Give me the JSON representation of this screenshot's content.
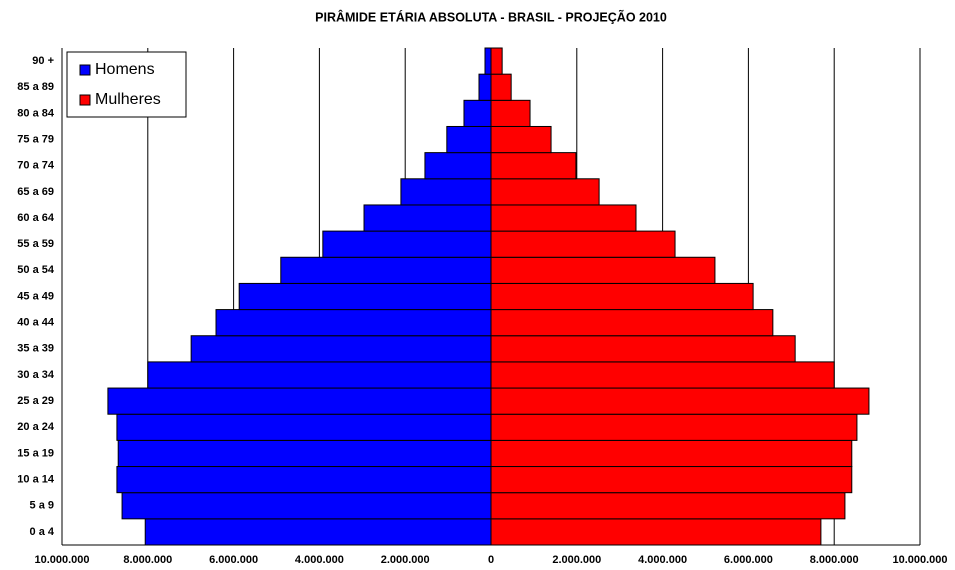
{
  "chart_data": {
    "type": "pyramid",
    "title": "PIRÂMIDE ETÁRIA ABSOLUTA - BRASIL - PROJEÇÃO 2010",
    "categories": [
      "0 a 4",
      "5 a 9",
      "10 a 14",
      "15 a 19",
      "20 a 24",
      "25 a 29",
      "30 a 34",
      "35 a 39",
      "40 a 44",
      "45 a 49",
      "50 a 54",
      "55 a 59",
      "60 a 64",
      "65 a 69",
      "70 a 74",
      "75 a 79",
      "80 a 84",
      "85 a 89",
      "90 +"
    ],
    "series": [
      {
        "name": "Homens",
        "color": "#0000ff",
        "values": [
          -8060000,
          -8600000,
          -8720000,
          -8690000,
          -8720000,
          -8930000,
          -8000000,
          -6990000,
          -6410000,
          -5870000,
          -4900000,
          -3920000,
          -2960000,
          -2100000,
          -1540000,
          -1030000,
          -630000,
          -280000,
          -140000
        ]
      },
      {
        "name": "Mulheres",
        "color": "#ff0000",
        "values": [
          7690000,
          8250000,
          8410000,
          8410000,
          8530000,
          8810000,
          8000000,
          7090000,
          6570000,
          6110000,
          5220000,
          4290000,
          3380000,
          2520000,
          1980000,
          1400000,
          910000,
          470000,
          260000
        ]
      }
    ],
    "xlim": [
      -10000000,
      10000000
    ],
    "xticks": [
      {
        "value": -10000000,
        "label": "10.000.000"
      },
      {
        "value": -8000000,
        "label": "8.000.000"
      },
      {
        "value": -6000000,
        "label": "6.000.000"
      },
      {
        "value": -4000000,
        "label": "4.000.000"
      },
      {
        "value": -2000000,
        "label": "2.000.000"
      },
      0,
      {
        "value": 2000000,
        "label": "2.000.000"
      },
      {
        "value": 4000000,
        "label": "4.000.000"
      },
      {
        "value": 6000000,
        "label": "6.000.000"
      },
      {
        "value": 8000000,
        "label": "8.000.000"
      },
      {
        "value": 10000000,
        "label": "10.000.000"
      }
    ],
    "grid": true,
    "legend": "upper left"
  }
}
